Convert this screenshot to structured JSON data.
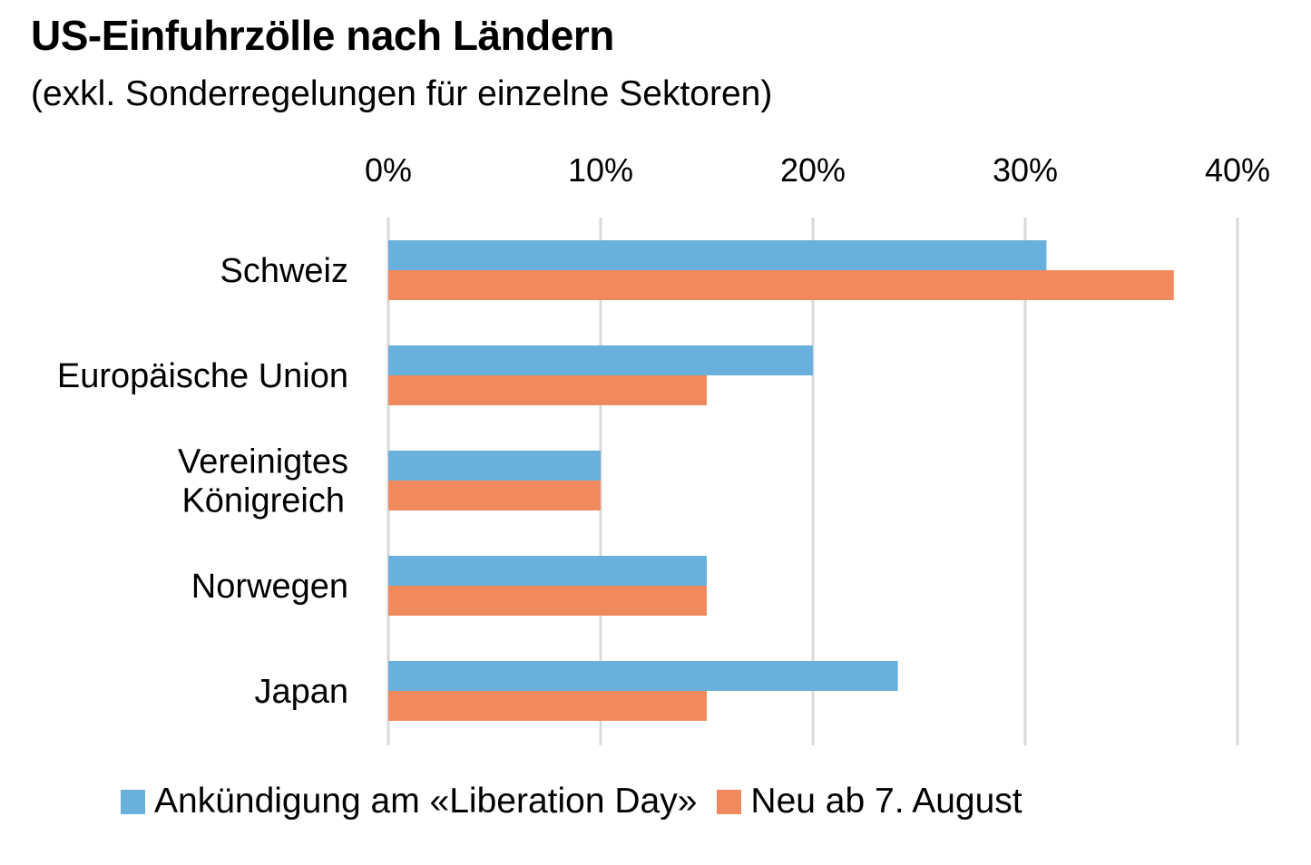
{
  "chart_data": {
    "type": "bar",
    "orientation": "horizontal",
    "title": "US-Einfuhrzölle nach Ländern",
    "subtitle": "(exkl. Sonderregelungen für einzelne Sektoren)",
    "categories": [
      [
        "Schweiz"
      ],
      [
        "Europäische Union"
      ],
      [
        "Vereinigtes",
        "Königreich"
      ],
      [
        "Norwegen"
      ],
      [
        "Japan"
      ]
    ],
    "series": [
      {
        "name": "Ankündigung am «Liberation Day»",
        "color": "#6ab0dc",
        "values": [
          31,
          20,
          10,
          15,
          24
        ]
      },
      {
        "name": "Neu ab 7. August",
        "color": "#f08a5e",
        "values": [
          37,
          15,
          10,
          15,
          15
        ]
      }
    ],
    "xlim": [
      0,
      40
    ],
    "xticks": [
      0,
      10,
      20,
      30,
      40
    ],
    "tick_labels": [
      "0%",
      "10%",
      "20%",
      "30%",
      "40%"
    ],
    "axis_position": "top",
    "grid": true,
    "grid_color": "#d9d9d9",
    "legend_position": "bottom"
  }
}
